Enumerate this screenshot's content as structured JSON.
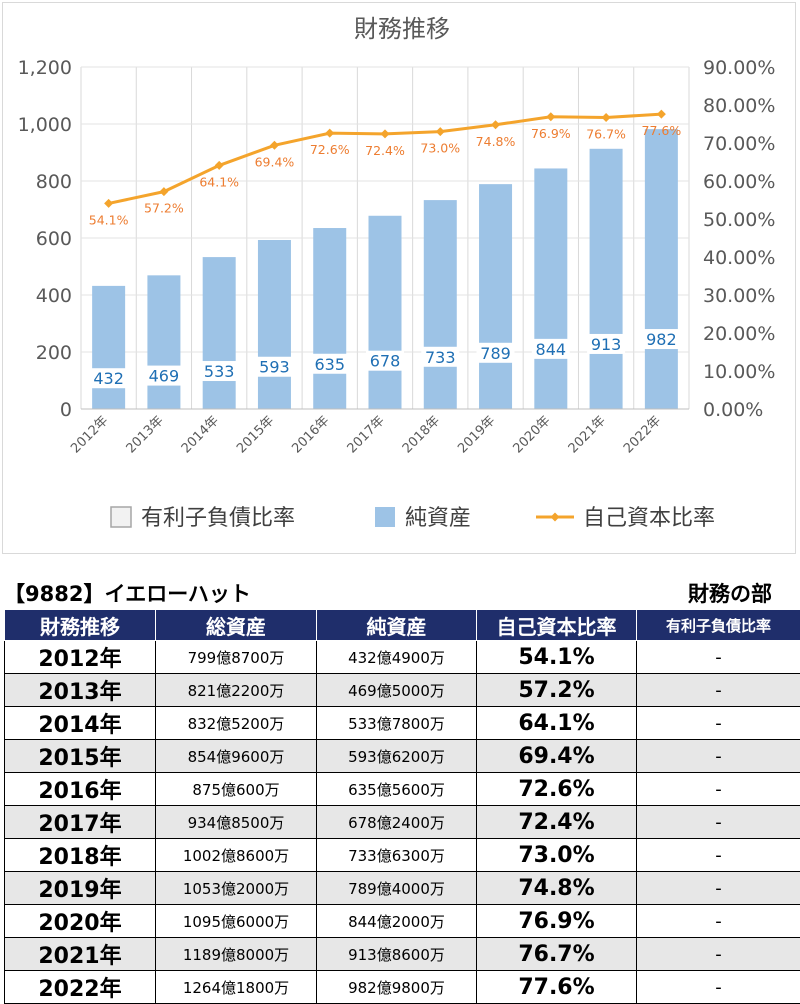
{
  "chart_data": {
    "type": "bar",
    "title": "財務推移",
    "categories": [
      "2012年",
      "2013年",
      "2014年",
      "2015年",
      "2016年",
      "2017年",
      "2018年",
      "2019年",
      "2020年",
      "2021年",
      "2022年"
    ],
    "series": [
      {
        "name": "有利子負債比率",
        "type": "bar",
        "axis": "left",
        "values": [
          null,
          null,
          null,
          null,
          null,
          null,
          null,
          null,
          null,
          null,
          null
        ]
      },
      {
        "name": "純資産",
        "type": "bar",
        "axis": "left",
        "values": [
          432,
          469,
          533,
          593,
          635,
          678,
          733,
          789,
          844,
          913,
          982
        ]
      },
      {
        "name": "自己資本比率",
        "type": "line",
        "axis": "right",
        "values": [
          54.1,
          57.2,
          64.1,
          69.4,
          72.6,
          72.4,
          73.0,
          74.8,
          76.9,
          76.7,
          77.6
        ],
        "labels": [
          "54.1%",
          "57.2%",
          "64.1%",
          "69.4%",
          "72.6%",
          "72.4%",
          "73.0%",
          "74.8%",
          "76.9%",
          "76.7%",
          "77.6%"
        ]
      }
    ],
    "y_left": {
      "ylim": [
        0,
        1200
      ],
      "ticks": [
        "0",
        "200",
        "400",
        "600",
        "800",
        "1,000",
        "1,200"
      ]
    },
    "y_right": {
      "ylim": [
        0,
        90
      ],
      "ticks": [
        "0.00%",
        "10.00%",
        "20.00%",
        "30.00%",
        "40.00%",
        "50.00%",
        "60.00%",
        "70.00%",
        "80.00%",
        "90.00%"
      ]
    },
    "grid": true,
    "legend_position": "bottom",
    "colors": {
      "bar": "#9dc3e6",
      "bar_label": "#1f6fb4",
      "line": "#f4a42c",
      "line_label": "#ed7d31"
    }
  },
  "header": {
    "company": "【9882】イエローハット",
    "section": "財務の部"
  },
  "table": {
    "columns": [
      "財務推移",
      "総資産",
      "純資産",
      "自己資本比率",
      "有利子負債比率"
    ],
    "rows": [
      {
        "year": "2012年",
        "total": "799億8700万",
        "net": "432億4900万",
        "ratio": "54.1%",
        "debt": "-"
      },
      {
        "year": "2013年",
        "total": "821億2200万",
        "net": "469億5000万",
        "ratio": "57.2%",
        "debt": "-"
      },
      {
        "year": "2014年",
        "total": "832億5200万",
        "net": "533億7800万",
        "ratio": "64.1%",
        "debt": "-"
      },
      {
        "year": "2015年",
        "total": "854億9600万",
        "net": "593億6200万",
        "ratio": "69.4%",
        "debt": "-"
      },
      {
        "year": "2016年",
        "total": "875億600万",
        "net": "635億5600万",
        "ratio": "72.6%",
        "debt": "-"
      },
      {
        "year": "2017年",
        "total": "934億8500万",
        "net": "678億2400万",
        "ratio": "72.4%",
        "debt": "-"
      },
      {
        "year": "2018年",
        "total": "1002億8600万",
        "net": "733億6300万",
        "ratio": "73.0%",
        "debt": "-"
      },
      {
        "year": "2019年",
        "total": "1053億2000万",
        "net": "789億4000万",
        "ratio": "74.8%",
        "debt": "-"
      },
      {
        "year": "2020年",
        "total": "1095億6000万",
        "net": "844億2000万",
        "ratio": "76.9%",
        "debt": "-"
      },
      {
        "year": "2021年",
        "total": "1189億8000万",
        "net": "913億8600万",
        "ratio": "76.7%",
        "debt": "-"
      },
      {
        "year": "2022年",
        "total": "1264億1800万",
        "net": "982億9800万",
        "ratio": "77.6%",
        "debt": "-"
      }
    ]
  }
}
